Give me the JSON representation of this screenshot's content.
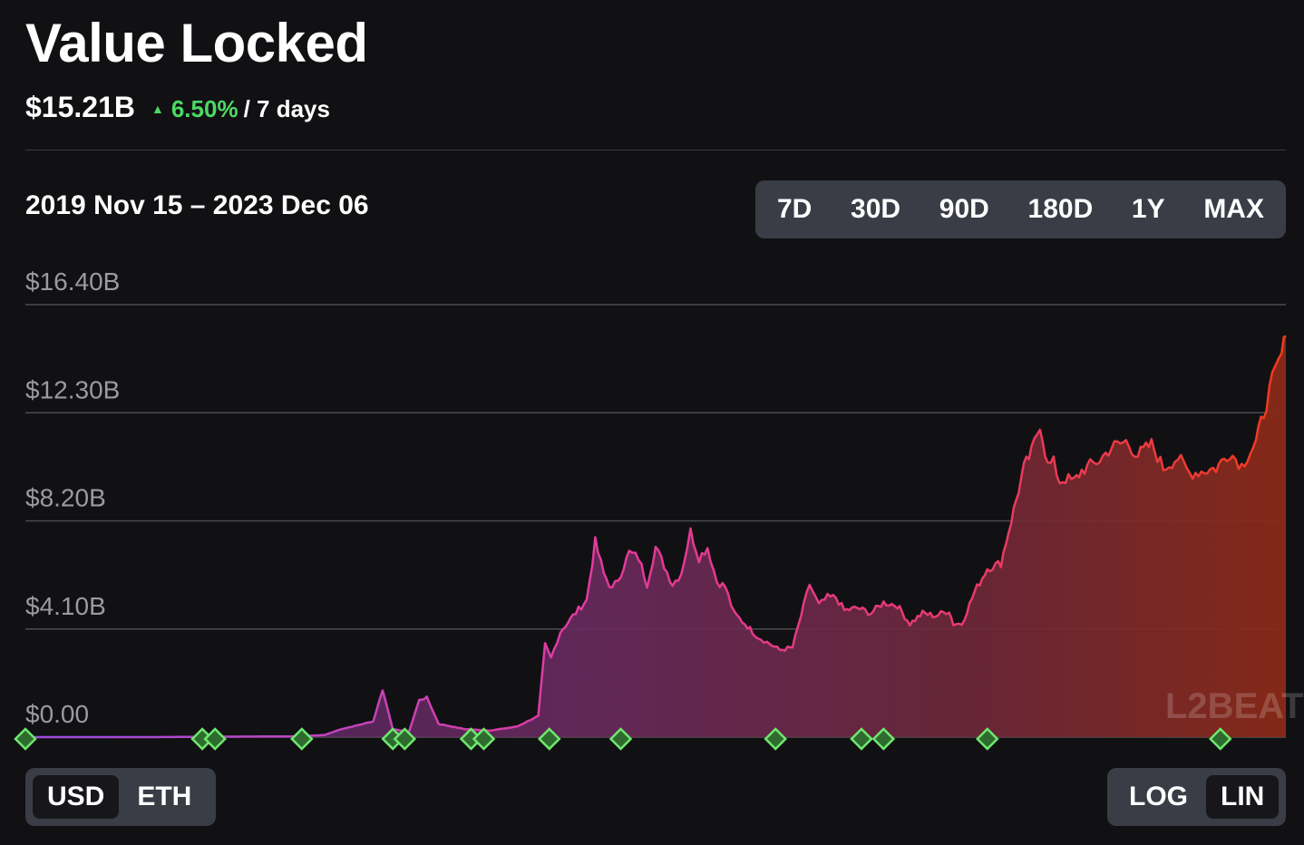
{
  "header": {
    "title": "Value Locked",
    "tvl": "$15.21B",
    "change": "6.50%",
    "period": "/ 7 days",
    "date_range": "2019 Nov 15 – 2023 Dec 06"
  },
  "range_tabs": [
    {
      "label": "7D",
      "active": false
    },
    {
      "label": "30D",
      "active": false
    },
    {
      "label": "90D",
      "active": false
    },
    {
      "label": "180D",
      "active": false
    },
    {
      "label": "1Y",
      "active": false
    },
    {
      "label": "MAX",
      "active": true
    }
  ],
  "unit_toggle": [
    {
      "label": "USD",
      "active": true
    },
    {
      "label": "ETH",
      "active": false
    }
  ],
  "scale_toggle": [
    {
      "label": "LOG",
      "active": false
    },
    {
      "label": "LIN",
      "active": true
    }
  ],
  "watermark": "L2BEAT",
  "colors": {
    "background": "#111114",
    "positive": "#4cd964",
    "gradient_start": "#9b4ee0",
    "gradient_mid": "#e23a9e",
    "gradient_end": "#f03a1c",
    "milestone": "#4cd964"
  },
  "chart_data": {
    "type": "area",
    "ylabel": "",
    "xlabel": "",
    "ylim": [
      0,
      16.4
    ],
    "y_ticks": [
      "$16.40B",
      "$12.30B",
      "$8.20B",
      "$4.10B",
      "$0.00"
    ],
    "y_tick_values": [
      16.4,
      12.3,
      8.2,
      4.1,
      0
    ],
    "xlim": [
      "2019-11-15",
      "2023-12-06"
    ],
    "grid": true,
    "series": [
      {
        "x": [
          "2019-11-15",
          "2020-01-15",
          "2020-04-15",
          "2020-06-01",
          "2020-08-01",
          "2020-10-01",
          "2020-11-01",
          "2020-11-20",
          "2020-12-10",
          "2020-12-28",
          "2021-01-08",
          "2021-01-20",
          "2021-02-08",
          "2021-02-20",
          "2021-03-01",
          "2021-03-15",
          "2021-04-15",
          "2021-05-15",
          "2021-06-15",
          "2021-07-10",
          "2021-07-18",
          "2021-07-25",
          "2021-08-05",
          "2021-08-20",
          "2021-09-05",
          "2021-09-15",
          "2021-09-25",
          "2021-10-05",
          "2021-10-15",
          "2021-10-25",
          "2021-11-05",
          "2021-11-15",
          "2021-11-25",
          "2021-12-05",
          "2021-12-15",
          "2021-12-25",
          "2022-01-05",
          "2022-01-15",
          "2022-01-25",
          "2022-02-05",
          "2022-02-15",
          "2022-02-25",
          "2022-03-10",
          "2022-03-25",
          "2022-04-05",
          "2022-04-20",
          "2022-05-05",
          "2022-05-15",
          "2022-05-25",
          "2022-06-05",
          "2022-06-15",
          "2022-06-25",
          "2022-07-05",
          "2022-07-20",
          "2022-08-05",
          "2022-08-20",
          "2022-09-05",
          "2022-09-20",
          "2022-10-05",
          "2022-10-20",
          "2022-11-05",
          "2022-11-10",
          "2022-11-20",
          "2022-12-05",
          "2022-12-20",
          "2023-01-05",
          "2023-01-20",
          "2023-02-01",
          "2023-02-10",
          "2023-02-20",
          "2023-03-01",
          "2023-03-08",
          "2023-03-15",
          "2023-03-22",
          "2023-04-01",
          "2023-04-10",
          "2023-04-20",
          "2023-05-01",
          "2023-05-15",
          "2023-06-01",
          "2023-06-15",
          "2023-07-01",
          "2023-07-15",
          "2023-08-01",
          "2023-08-15",
          "2023-09-01",
          "2023-09-15",
          "2023-10-01",
          "2023-10-15",
          "2023-11-01",
          "2023-11-10",
          "2023-11-20",
          "2023-12-01",
          "2023-12-06"
        ],
        "y": [
          0.0,
          0.0,
          0.0,
          0.01,
          0.02,
          0.03,
          0.08,
          0.3,
          0.45,
          0.6,
          1.8,
          0.3,
          0.2,
          1.4,
          1.5,
          0.5,
          0.3,
          0.25,
          0.4,
          0.8,
          3.5,
          3.0,
          4.0,
          4.6,
          5.2,
          7.4,
          6.2,
          5.6,
          6.2,
          7.0,
          6.8,
          5.8,
          7.2,
          6.5,
          5.8,
          6.2,
          7.8,
          6.8,
          7.2,
          5.9,
          5.7,
          4.7,
          4.3,
          3.8,
          3.6,
          3.3,
          3.4,
          4.6,
          5.8,
          5.0,
          5.3,
          5.3,
          4.8,
          4.9,
          4.7,
          5.1,
          5.0,
          4.3,
          4.7,
          4.6,
          4.8,
          4.3,
          4.3,
          5.5,
          6.4,
          6.6,
          8.6,
          10.2,
          10.8,
          11.9,
          10.3,
          10.4,
          9.7,
          9.8,
          9.7,
          10.1,
          10.3,
          10.5,
          11.0,
          11.2,
          10.7,
          11.1,
          10.2,
          10.6,
          10.0,
          10.1,
          10.2,
          10.8,
          10.3,
          11.2,
          12.3,
          13.5,
          14.5,
          15.21
        ]
      }
    ],
    "milestones": [
      "2019-11-15",
      "2020-06-10",
      "2020-06-25",
      "2020-10-05",
      "2021-01-20",
      "2021-02-03",
      "2021-04-22",
      "2021-05-07",
      "2021-07-23",
      "2021-10-15",
      "2022-04-15",
      "2022-07-25",
      "2022-08-20",
      "2022-12-20",
      "2023-09-20"
    ]
  }
}
